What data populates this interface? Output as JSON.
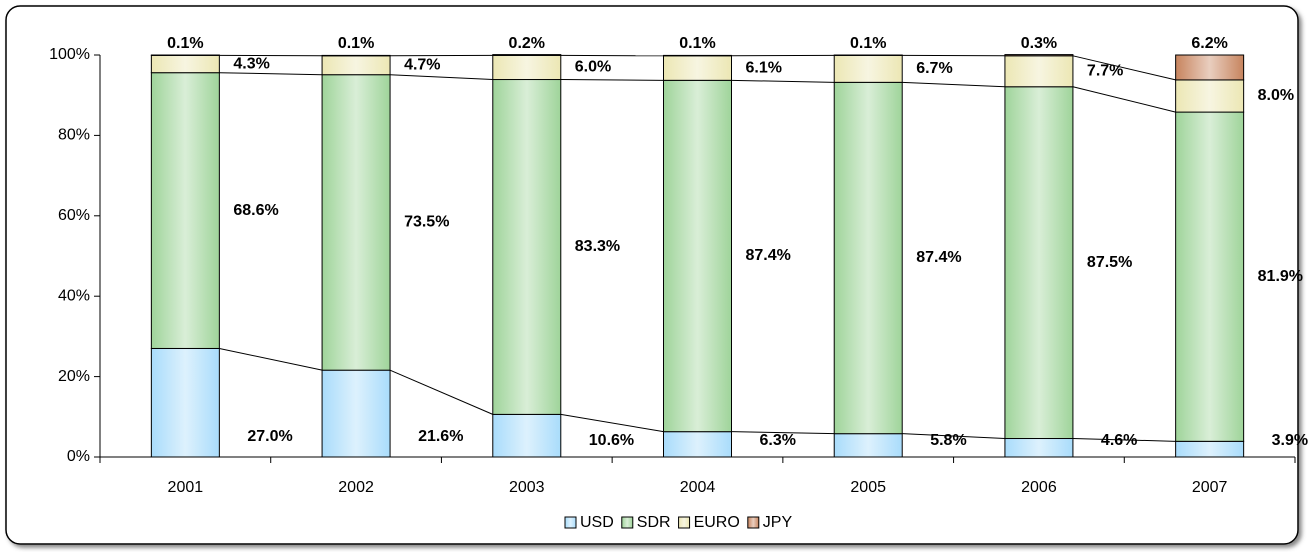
{
  "chart_data": {
    "type": "stacked_bar",
    "categories": [
      "2001",
      "2002",
      "2003",
      "2004",
      "2005",
      "2006",
      "2007"
    ],
    "series": [
      {
        "name": "USD",
        "color": "#a9dcfb",
        "values": [
          27.0,
          21.6,
          10.6,
          6.3,
          5.8,
          4.6,
          3.9
        ],
        "value_labels": [
          "27.0%",
          "21.6%",
          "10.6%",
          "6.3%",
          "5.8%",
          "4.6%",
          "3.9%"
        ]
      },
      {
        "name": "SDR",
        "color": "#9fd49a",
        "values": [
          68.6,
          73.5,
          83.3,
          87.4,
          87.4,
          87.5,
          81.9
        ],
        "value_labels": [
          "68.6%",
          "73.5%",
          "83.3%",
          "87.4%",
          "87.4%",
          "87.5%",
          "81.9%"
        ]
      },
      {
        "name": "EURO",
        "color": "#ece7b4",
        "values": [
          4.3,
          4.7,
          6.0,
          6.1,
          6.7,
          7.7,
          8.0
        ],
        "value_labels": [
          "4.3%",
          "4.7%",
          "6.0%",
          "6.1%",
          "6.7%",
          "7.7%",
          "8.0%"
        ]
      },
      {
        "name": "JPY",
        "color": "#c7845e",
        "values": [
          0.1,
          0.1,
          0.2,
          0.1,
          0.1,
          0.3,
          6.2
        ],
        "value_labels": [
          "0.1%",
          "0.1%",
          "0.2%",
          "0.1%",
          "0.1%",
          "0.3%",
          "6.2%"
        ]
      }
    ],
    "ylim": [
      0,
      100
    ],
    "yticks": [
      {
        "value": 0,
        "label": "0%"
      },
      {
        "value": 20,
        "label": "20%"
      },
      {
        "value": 40,
        "label": "40%"
      },
      {
        "value": 60,
        "label": "60%"
      },
      {
        "value": 80,
        "label": "80%"
      },
      {
        "value": 100,
        "label": "100%"
      }
    ],
    "legend": "bottom"
  }
}
